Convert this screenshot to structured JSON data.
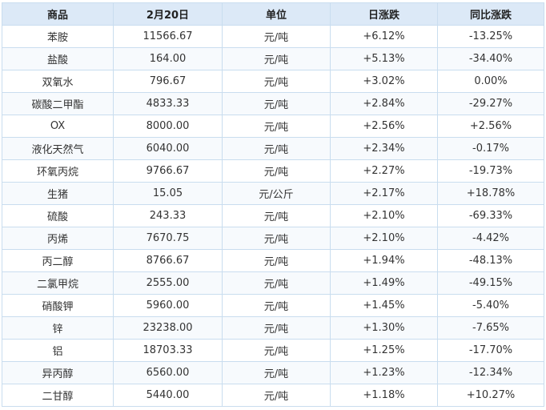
{
  "table": {
    "headers": [
      "商品",
      "2月20日",
      "单位",
      "日涨跌",
      "同比涨跌"
    ],
    "colors": {
      "up": "#e02424",
      "down": "#2a8a2a",
      "flat": "#333333"
    },
    "rows": [
      {
        "name": "苯胺",
        "price": "11566.67",
        "unit": "元/吨",
        "daily": "+6.12%",
        "yoy": "-13.25%"
      },
      {
        "name": "盐酸",
        "price": "164.00",
        "unit": "元/吨",
        "daily": "+5.13%",
        "yoy": "-34.40%"
      },
      {
        "name": "双氧水",
        "price": "796.67",
        "unit": "元/吨",
        "daily": "+3.02%",
        "yoy": "0.00%"
      },
      {
        "name": "碳酸二甲酯",
        "price": "4833.33",
        "unit": "元/吨",
        "daily": "+2.84%",
        "yoy": "-29.27%"
      },
      {
        "name": "OX",
        "price": "8000.00",
        "unit": "元/吨",
        "daily": "+2.56%",
        "yoy": "+2.56%"
      },
      {
        "name": "液化天然气",
        "price": "6040.00",
        "unit": "元/吨",
        "daily": "+2.34%",
        "yoy": "-0.17%"
      },
      {
        "name": "环氧丙烷",
        "price": "9766.67",
        "unit": "元/吨",
        "daily": "+2.27%",
        "yoy": "-19.73%"
      },
      {
        "name": "生猪",
        "price": "15.05",
        "unit": "元/公斤",
        "daily": "+2.17%",
        "yoy": "+18.78%"
      },
      {
        "name": "硫酸",
        "price": "243.33",
        "unit": "元/吨",
        "daily": "+2.10%",
        "yoy": "-69.33%"
      },
      {
        "name": "丙烯",
        "price": "7670.75",
        "unit": "元/吨",
        "daily": "+2.10%",
        "yoy": "-4.42%"
      },
      {
        "name": "丙二醇",
        "price": "8766.67",
        "unit": "元/吨",
        "daily": "+1.94%",
        "yoy": "-48.13%"
      },
      {
        "name": "二氯甲烷",
        "price": "2555.00",
        "unit": "元/吨",
        "daily": "+1.49%",
        "yoy": "-49.15%"
      },
      {
        "name": "硝酸钾",
        "price": "5960.00",
        "unit": "元/吨",
        "daily": "+1.45%",
        "yoy": "-5.40%"
      },
      {
        "name": "锌",
        "price": "23238.00",
        "unit": "元/吨",
        "daily": "+1.30%",
        "yoy": "-7.65%"
      },
      {
        "name": "铝",
        "price": "18703.33",
        "unit": "元/吨",
        "daily": "+1.25%",
        "yoy": "-17.70%"
      },
      {
        "name": "异丙醇",
        "price": "6560.00",
        "unit": "元/吨",
        "daily": "+1.23%",
        "yoy": "-12.34%"
      },
      {
        "name": "二甘醇",
        "price": "5440.00",
        "unit": "元/吨",
        "daily": "+1.18%",
        "yoy": "+10.27%"
      }
    ]
  }
}
